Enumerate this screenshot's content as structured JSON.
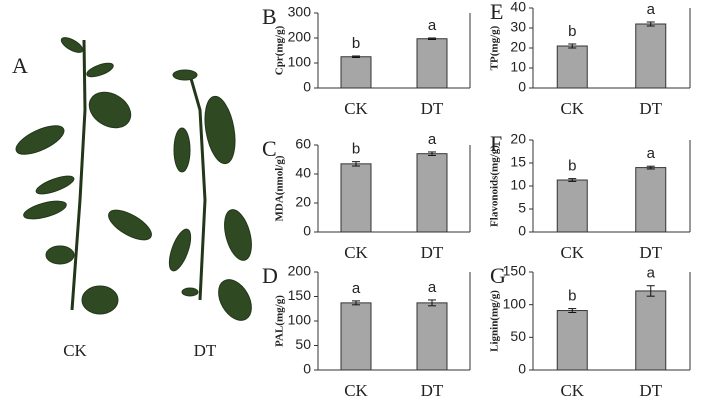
{
  "photo_panel": {
    "label": "A",
    "captions": [
      "CK",
      "DT"
    ]
  },
  "chart_data": [
    {
      "type": "bar",
      "panel": "B",
      "ylabel": "Cpr(mg/g)",
      "categories": [
        "CK",
        "DT"
      ],
      "values": [
        125,
        197
      ],
      "errors": [
        3,
        3
      ],
      "annotations": [
        "b",
        "a"
      ],
      "color": "#a6a6a6",
      "ylim": [
        0,
        300
      ],
      "yticks": [
        0,
        100,
        200,
        300
      ]
    },
    {
      "type": "bar",
      "panel": "E",
      "ylabel": "TP(mg/g)",
      "categories": [
        "CK",
        "DT"
      ],
      "values": [
        21,
        32
      ],
      "errors": [
        1,
        1
      ],
      "annotations": [
        "b",
        "a"
      ],
      "color": "#a6a6a6",
      "ylim": [
        0,
        40
      ],
      "yticks": [
        0,
        10,
        20,
        30,
        40
      ]
    },
    {
      "type": "bar",
      "panel": "C",
      "ylabel": "MDA(nmol/g)",
      "categories": [
        "CK",
        "DT"
      ],
      "values": [
        47,
        54
      ],
      "errors": [
        1.5,
        1.2
      ],
      "annotations": [
        "b",
        "a"
      ],
      "color": "#a6a6a6",
      "ylim": [
        0,
        60
      ],
      "yticks": [
        0,
        20,
        40,
        60
      ]
    },
    {
      "type": "bar",
      "panel": "F",
      "ylabel": "Flavonoids(mg/g)",
      "categories": [
        "CK",
        "DT"
      ],
      "values": [
        11.3,
        14
      ],
      "errors": [
        0.3,
        0.3
      ],
      "annotations": [
        "b",
        "a"
      ],
      "color": "#a6a6a6",
      "ylim": [
        0,
        20
      ],
      "yticks": [
        0,
        5,
        10,
        15,
        20
      ]
    },
    {
      "type": "bar",
      "panel": "D",
      "ylabel": "PAL(mg/g)",
      "categories": [
        "CK",
        "DT"
      ],
      "values": [
        137,
        137
      ],
      "errors": [
        4,
        6
      ],
      "annotations": [
        "a",
        "a"
      ],
      "color": "#a6a6a6",
      "ylim": [
        0,
        200
      ],
      "yticks": [
        0,
        50,
        100,
        150,
        200
      ]
    },
    {
      "type": "bar",
      "panel": "G",
      "ylabel": "Lignin(mg/g)",
      "categories": [
        "CK",
        "DT"
      ],
      "values": [
        91,
        121
      ],
      "errors": [
        3,
        8
      ],
      "annotations": [
        "b",
        "a"
      ],
      "color": "#a6a6a6",
      "ylim": [
        0,
        150
      ],
      "yticks": [
        0,
        50,
        100,
        150
      ]
    }
  ]
}
